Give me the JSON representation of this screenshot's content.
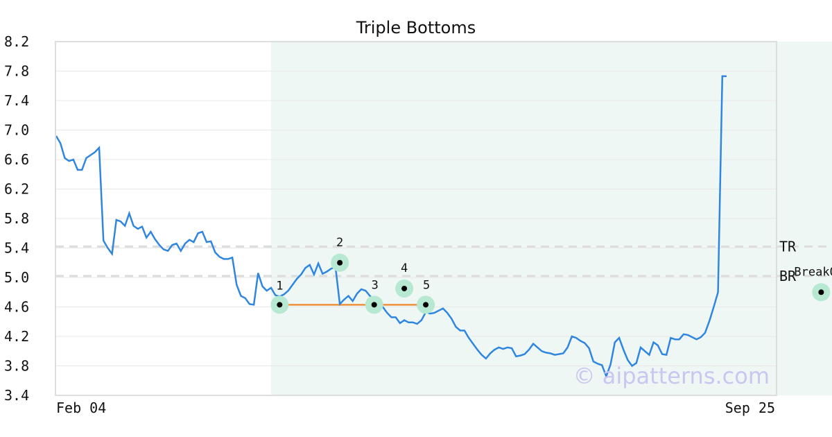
{
  "chart_data": {
    "type": "line",
    "title": "Triple Bottoms",
    "watermark": "© aipatterns.com",
    "y_ticks": [
      "3.4",
      "3.8",
      "4.2",
      "4.6",
      "5.0",
      "5.4",
      "5.8",
      "6.2",
      "6.6",
      "7.0",
      "7.4",
      "7.8",
      "8.2"
    ],
    "ylim": [
      3.4,
      8.2
    ],
    "x_tick_labels": [
      "Feb 04",
      "Sep 25"
    ],
    "grid": "horizontal",
    "line_color": "#2f86e0",
    "highlight_fill": "#eef7f3",
    "support_line_color": "#f0913a",
    "marker_halo_color": "#b7e8d2",
    "reference_lines": [
      {
        "label": "TR",
        "value": 5.42
      },
      {
        "label": "BR",
        "value": 5.02
      }
    ],
    "highlight_range": [
      50,
      181
    ],
    "support_line": {
      "from": 52,
      "to": 86,
      "value": 4.63
    },
    "series": [
      {
        "values": [
          6.92,
          6.82,
          6.62,
          6.58,
          6.6,
          6.46,
          6.46,
          6.62,
          6.66,
          6.7,
          6.76,
          5.5,
          5.4,
          5.32,
          5.78,
          5.76,
          5.7,
          5.87,
          5.7,
          5.66,
          5.69,
          5.54,
          5.62,
          5.52,
          5.44,
          5.38,
          5.36,
          5.44,
          5.46,
          5.36,
          5.46,
          5.51,
          5.48,
          5.6,
          5.62,
          5.48,
          5.49,
          5.34,
          5.28,
          5.25,
          5.25,
          5.27,
          4.9,
          4.75,
          4.72,
          4.64,
          4.63,
          5.06,
          4.88,
          4.82,
          4.86,
          4.76,
          4.74,
          4.77,
          4.82,
          4.9,
          4.98,
          5.04,
          5.13,
          5.17,
          5.04,
          5.19,
          5.05,
          5.08,
          5.12,
          5.14,
          4.64,
          4.7,
          4.75,
          4.68,
          4.78,
          4.84,
          4.82,
          4.75,
          4.71,
          4.65,
          4.6,
          4.52,
          4.46,
          4.46,
          4.38,
          4.42,
          4.39,
          4.39,
          4.37,
          4.42,
          4.53,
          4.51,
          4.52,
          4.55,
          4.58,
          4.52,
          4.44,
          4.33,
          4.28,
          4.28,
          4.18,
          4.1,
          4.02,
          3.95,
          3.9,
          3.97,
          4.02,
          4.05,
          4.03,
          4.05,
          4.04,
          3.93,
          3.94,
          3.96,
          4.02,
          4.1,
          4.05,
          4.0,
          3.98,
          3.97,
          3.95,
          3.96,
          3.97,
          4.05,
          4.2,
          4.18,
          4.14,
          4.11,
          4.04,
          3.86,
          3.83,
          3.81,
          3.66,
          3.82,
          4.12,
          4.18,
          4.02,
          3.88,
          3.8,
          3.84,
          4.05,
          4.0,
          3.95,
          4.12,
          4.08,
          3.96,
          3.95,
          4.18,
          4.16,
          4.16,
          4.23,
          4.22,
          4.19,
          4.16,
          4.19,
          4.25,
          4.41,
          4.6,
          4.8,
          7.73,
          7.73
        ]
      }
    ],
    "annotations": [
      {
        "label": "1",
        "index": 52,
        "value": 4.63
      },
      {
        "label": "2",
        "index": 66,
        "value": 5.2
      },
      {
        "label": "3",
        "index": 74,
        "value": 4.63
      },
      {
        "label": "4",
        "index": 81,
        "value": 4.85
      },
      {
        "label": "5",
        "index": 86,
        "value": 4.63
      },
      {
        "label": "BreakOut",
        "index": 178,
        "value": 4.8
      }
    ]
  }
}
